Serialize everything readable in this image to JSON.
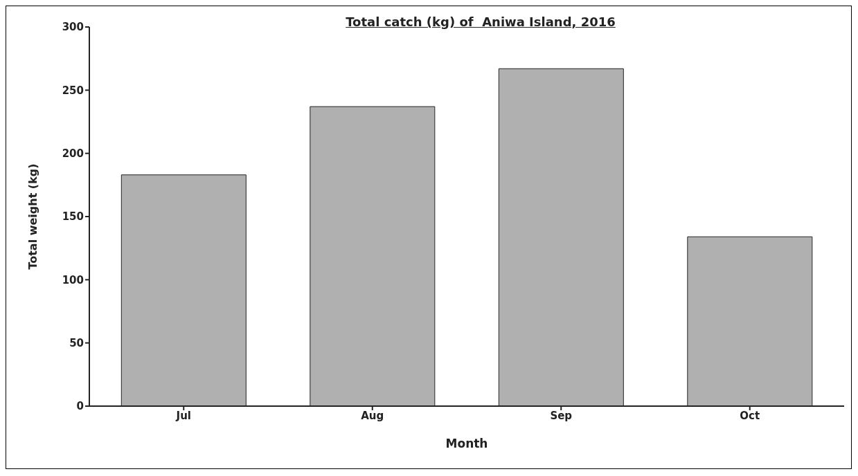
{
  "chart_data": {
    "type": "bar",
    "title": "Total catch (kg) of  Aniwa Island, 2016",
    "xlabel": "Month",
    "ylabel": "Total weight (kg)",
    "categories": [
      "Jul",
      "Aug",
      "Sep",
      "Oct"
    ],
    "values": [
      183,
      237,
      267,
      134
    ],
    "color": "#b0b0b0",
    "ylim": [
      0,
      300
    ],
    "yticks": [
      0,
      50,
      100,
      150,
      200,
      250,
      300
    ],
    "grid": false,
    "legend": false
  }
}
